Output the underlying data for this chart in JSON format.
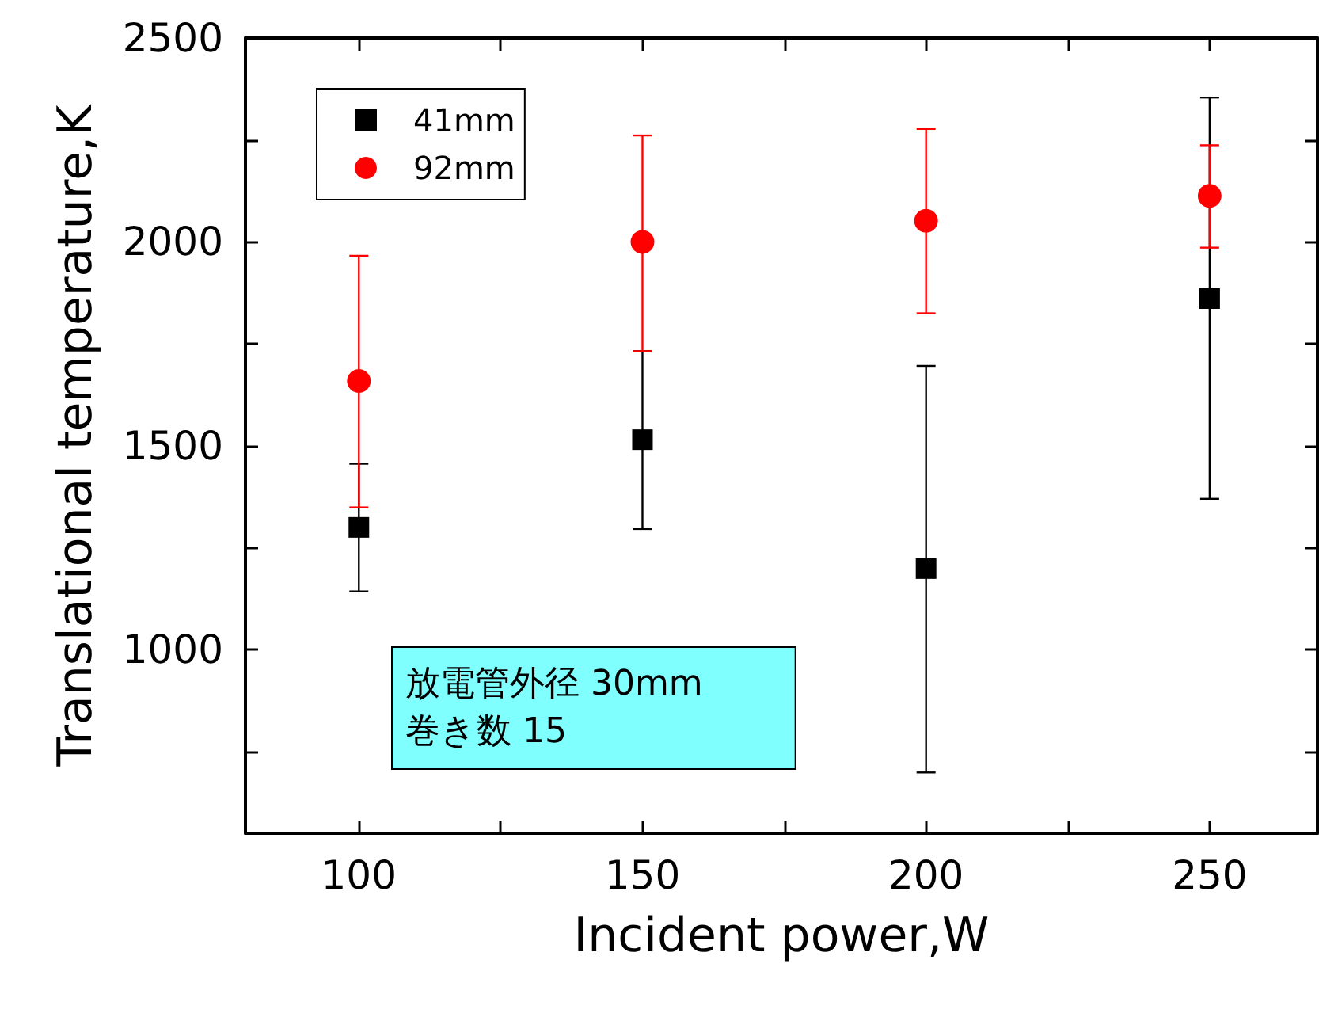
{
  "chart_data": {
    "type": "scatter",
    "xlabel": "Incident power,W",
    "ylabel": "Translational temperature,K",
    "x": [
      100,
      150,
      200,
      250
    ],
    "series": [
      {
        "name": "41mm",
        "color": "#000000",
        "marker": "square",
        "values": [
          1300,
          1515,
          1199,
          1861
        ],
        "errors": [
          [
            1143,
            1456
          ],
          [
            1296,
            1732
          ],
          [
            699,
            1696
          ],
          [
            1370,
            2354
          ]
        ]
      },
      {
        "name": "92mm",
        "color": "#ff0000",
        "marker": "circle",
        "values": [
          1659,
          2000,
          2052,
          2113
        ],
        "errors": [
          [
            1349,
            1966
          ],
          [
            1732,
            2261
          ],
          [
            1825,
            2277
          ],
          [
            1986,
            2237
          ]
        ]
      }
    ],
    "xlim": [
      80,
      269
    ],
    "xticks": [
      100,
      {
        "value": 125,
        "label": null
      },
      150,
      {
        "value": 175,
        "label": null
      },
      200,
      {
        "value": 225,
        "label": null
      },
      250
    ],
    "ylim": [
      550,
      2500
    ],
    "yticks": [
      {
        "value": 750,
        "label": null
      },
      1000,
      {
        "value": 1250,
        "label": null
      },
      1500,
      {
        "value": 1750,
        "label": null
      },
      2000,
      {
        "value": 2250,
        "label": null
      },
      2500
    ],
    "grid": false,
    "legend": "top left",
    "annotations": [
      "放電管外径 30mm\n巻き数 15"
    ]
  }
}
